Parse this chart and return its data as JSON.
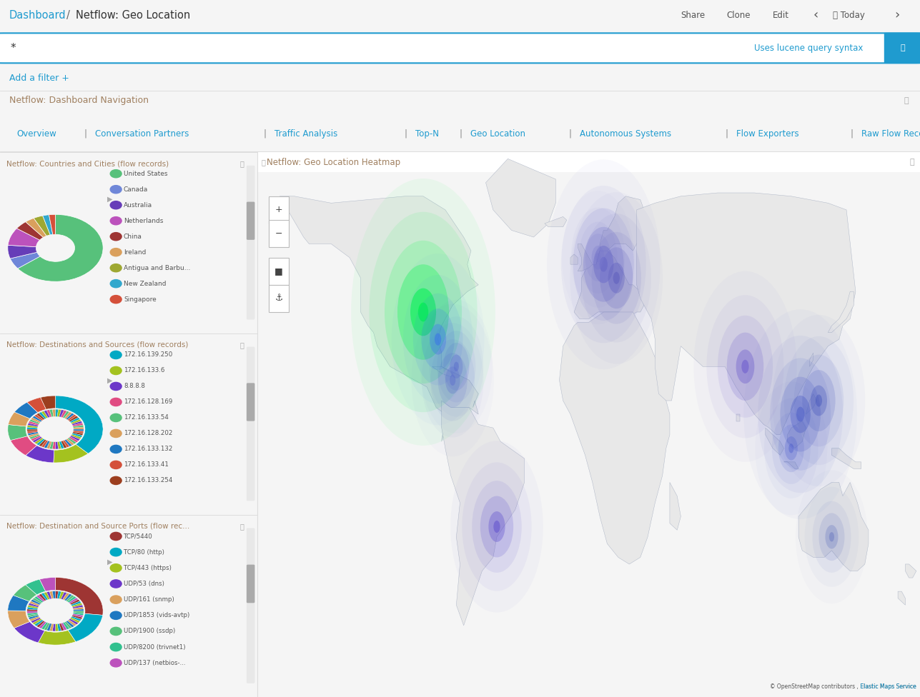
{
  "title_breadcrumb": "Dashboard",
  "title_main": "Netflow: Geo Location",
  "header_bg": "#e8e8e8",
  "search_text": "*",
  "search_hint": "Uses lucene query syntax",
  "add_filter": "Add a filter +",
  "nav_title": "Netflow: Dashboard Navigation",
  "nav_links": [
    "Overview",
    "Conversation Partners",
    "Traffic Analysis",
    "Top-N",
    "Geo Location",
    "Autonomous Systems",
    "Flow Exporters",
    "Raw Flow Records"
  ],
  "panel1_title": "Netflow: Countries and Cities (flow records)",
  "panel1_items": [
    {
      "label": "United States",
      "color": "#57c17b",
      "value": 60
    },
    {
      "label": "Canada",
      "color": "#6f87d8",
      "value": 5
    },
    {
      "label": "Australia",
      "color": "#663db8",
      "value": 6
    },
    {
      "label": "Netherlands",
      "color": "#bc52bc",
      "value": 8
    },
    {
      "label": "China",
      "color": "#9e3533",
      "value": 4
    },
    {
      "label": "Ireland",
      "color": "#daa05d",
      "value": 3
    },
    {
      "label": "Antigua and Barbu...",
      "color": "#9ea832",
      "value": 3
    },
    {
      "label": "New Zealand",
      "color": "#32a8cd",
      "value": 2
    },
    {
      "label": "Singapore",
      "color": "#d4503a",
      "value": 2
    }
  ],
  "panel2_title": "Netflow: Destinations and Sources (flow records)",
  "panel2_items": [
    {
      "label": "172.16.139.250",
      "color": "#00a9c4",
      "value": 30
    },
    {
      "label": "172.16.133.6",
      "color": "#a4c21f",
      "value": 10
    },
    {
      "label": "8.8.8.8",
      "color": "#6c37c9",
      "value": 8
    },
    {
      "label": "172.16.128.169",
      "color": "#e04c82",
      "value": 7
    },
    {
      "label": "172.16.133.54",
      "color": "#57c17b",
      "value": 6
    },
    {
      "label": "172.16.128.202",
      "color": "#daa05d",
      "value": 5
    },
    {
      "label": "172.16.133.132",
      "color": "#1f78c1",
      "value": 5
    },
    {
      "label": "172.16.133.41",
      "color": "#d4503a",
      "value": 4
    },
    {
      "label": "172.16.133.254",
      "color": "#9c3e1e",
      "value": 4
    }
  ],
  "panel3_title": "Netflow: Destination and Source Ports (flow rec...",
  "panel3_items": [
    {
      "label": "TCP/5440",
      "color": "#9e3533",
      "value": 25
    },
    {
      "label": "TCP/80 (http)",
      "color": "#00a9c4",
      "value": 15
    },
    {
      "label": "TCP/443 (https)",
      "color": "#a4c21f",
      "value": 12
    },
    {
      "label": "UDP/53 (dns)",
      "color": "#6c37c9",
      "value": 10
    },
    {
      "label": "UDP/161 (snmp)",
      "color": "#daa05d",
      "value": 8
    },
    {
      "label": "UDP/1853 (vids-avtp)",
      "color": "#1f78c1",
      "value": 7
    },
    {
      "label": "UDP/1900 (ssdp)",
      "color": "#57c17b",
      "value": 6
    },
    {
      "label": "UDP/8200 (trivnet1)",
      "color": "#32c18f",
      "value": 5
    },
    {
      "label": "UDP/137 (netbios-...",
      "color": "#bc52bc",
      "value": 5
    }
  ],
  "map_title": "Netflow: Geo Location Heatmap",
  "map_bg": "#c9d9e8",
  "land_color": "#e8e8e8",
  "land_edge": "#b0b8c8",
  "copyright_text": "© OpenStreetMap contributors , Elastic Maps Service",
  "heatmap_blobs": [
    {
      "lon": -90,
      "lat": 38,
      "size": 14,
      "color": "#00ff44",
      "alpha": 0.85
    },
    {
      "lon": -82,
      "lat": 30,
      "size": 9,
      "color": "#3366ff",
      "alpha": 0.45
    },
    {
      "lon": -72,
      "lat": 22,
      "size": 7,
      "color": "#4455cc",
      "alpha": 0.35
    },
    {
      "lon": -74,
      "lat": 18,
      "size": 8,
      "color": "#5566cc",
      "alpha": 0.4
    },
    {
      "lon": -50,
      "lat": -25,
      "size": 9,
      "color": "#5544cc",
      "alpha": 0.5
    },
    {
      "lon": 8,
      "lat": 52,
      "size": 11,
      "color": "#6666cc",
      "alpha": 0.6
    },
    {
      "lon": 15,
      "lat": 48,
      "size": 9,
      "color": "#5555bb",
      "alpha": 0.5
    },
    {
      "lon": 5,
      "lat": 54,
      "size": 7,
      "color": "#7777cc",
      "alpha": 0.4
    },
    {
      "lon": 85,
      "lat": 22,
      "size": 10,
      "color": "#6655cc",
      "alpha": 0.55
    },
    {
      "lon": 115,
      "lat": 8,
      "size": 11,
      "color": "#5566cc",
      "alpha": 0.6
    },
    {
      "lon": 125,
      "lat": 12,
      "size": 9,
      "color": "#4455bb",
      "alpha": 0.5
    },
    {
      "lon": 110,
      "lat": -2,
      "size": 7,
      "color": "#4455cc",
      "alpha": 0.4
    },
    {
      "lon": 132,
      "lat": -28,
      "size": 7,
      "color": "#5566bb",
      "alpha": 0.4
    }
  ]
}
